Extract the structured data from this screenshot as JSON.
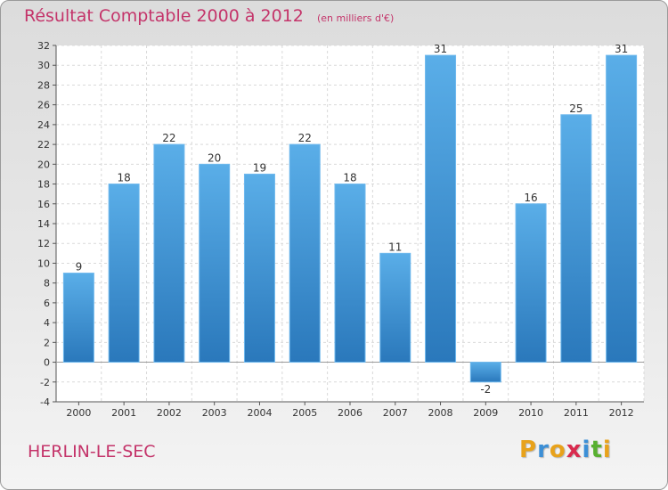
{
  "title": "Résultat Comptable 2000 à 2012",
  "unit": "(en milliers d'€)",
  "commune": "HERLIN-LE-SEC",
  "brand": {
    "letters": [
      "P",
      "r",
      "o",
      "x",
      "i",
      "t",
      "i"
    ],
    "colors": [
      "#e8a21b",
      "#3c8fd6",
      "#e8a21b",
      "#d92b4e",
      "#3c8fd6",
      "#58b030",
      "#e8a21b"
    ]
  },
  "colors": {
    "bar": "#4a9fe0",
    "bar_dark": "#2a78bb",
    "title": "#c4346a"
  },
  "chart_data": {
    "type": "bar",
    "categories": [
      "2000",
      "2001",
      "2002",
      "2003",
      "2004",
      "2005",
      "2006",
      "2007",
      "2008",
      "2009",
      "2010",
      "2011",
      "2012"
    ],
    "values": [
      9,
      18,
      22,
      20,
      19,
      22,
      18,
      11,
      31,
      -2,
      16,
      25,
      31
    ],
    "ylim": [
      -4,
      32
    ],
    "yticks": [
      -4,
      -2,
      0,
      2,
      4,
      6,
      8,
      10,
      12,
      14,
      16,
      18,
      20,
      22,
      24,
      26,
      28,
      30,
      32
    ],
    "grid": true
  }
}
